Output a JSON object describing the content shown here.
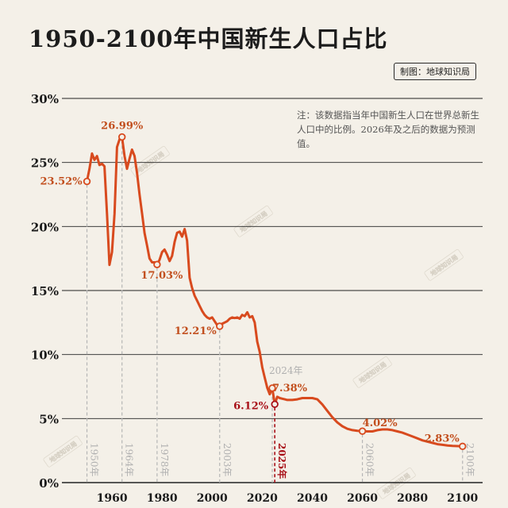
{
  "title": "1950-2100年中国新生人口占比",
  "credit": "制图：地球知识局",
  "note": "注：该数据指当年中国新生人口在世界总新生人口中的比例。2026年及之后的数据为预测值。",
  "watermark": "地球知识局",
  "colors": {
    "line": "#d84a1e",
    "label": "#c24f1e",
    "highlight": "#a81018",
    "grid": "#222222",
    "dashed": "#b5b5b5",
    "year_label": "#b0b0b0"
  },
  "chart_data": {
    "type": "line",
    "title": "1950-2100年中国新生人口占比",
    "xlabel": "",
    "ylabel": "",
    "xlim": [
      1940,
      2108
    ],
    "ylim": [
      0,
      30
    ],
    "y_ticks": [
      0,
      5,
      10,
      15,
      20,
      25,
      30
    ],
    "y_tick_labels": [
      "0%",
      "5%",
      "10%",
      "15%",
      "20%",
      "25%",
      "30%"
    ],
    "x_ticks": [
      1960,
      1980,
      2000,
      2020,
      2040,
      2060,
      2080,
      2100
    ],
    "x_tick_labels": [
      "1960",
      "1980",
      "2000",
      "2020",
      "2040",
      "2060",
      "2080",
      "2100"
    ],
    "grid": true,
    "series": [
      {
        "values": [
          [
            1950,
            23.52
          ],
          [
            1951,
            24.5
          ],
          [
            1952,
            25.7
          ],
          [
            1953,
            25.2
          ],
          [
            1954,
            25.5
          ],
          [
            1955,
            24.8
          ],
          [
            1956,
            24.9
          ],
          [
            1957,
            24.7
          ],
          [
            1958,
            21.0
          ],
          [
            1959,
            17.0
          ],
          [
            1960,
            18.0
          ],
          [
            1961,
            21.0
          ],
          [
            1962,
            26.2
          ],
          [
            1963,
            26.8
          ],
          [
            1964,
            26.99
          ],
          [
            1965,
            25.5
          ],
          [
            1966,
            24.5
          ],
          [
            1967,
            25.3
          ],
          [
            1968,
            26.0
          ],
          [
            1969,
            25.5
          ],
          [
            1970,
            24.2
          ],
          [
            1971,
            22.5
          ],
          [
            1972,
            21.0
          ],
          [
            1973,
            19.5
          ],
          [
            1974,
            18.5
          ],
          [
            1975,
            17.5
          ],
          [
            1976,
            17.2
          ],
          [
            1977,
            17.2
          ],
          [
            1978,
            17.03
          ],
          [
            1979,
            17.4
          ],
          [
            1980,
            18.0
          ],
          [
            1981,
            18.2
          ],
          [
            1982,
            17.8
          ],
          [
            1983,
            17.3
          ],
          [
            1984,
            17.7
          ],
          [
            1985,
            18.8
          ],
          [
            1986,
            19.5
          ],
          [
            1987,
            19.6
          ],
          [
            1988,
            19.2
          ],
          [
            1989,
            19.8
          ],
          [
            1990,
            18.9
          ],
          [
            1991,
            16.0
          ],
          [
            1992,
            15.2
          ],
          [
            1993,
            14.6
          ],
          [
            1994,
            14.2
          ],
          [
            1995,
            13.8
          ],
          [
            1996,
            13.4
          ],
          [
            1997,
            13.1
          ],
          [
            1998,
            12.9
          ],
          [
            1999,
            12.8
          ],
          [
            2000,
            12.9
          ],
          [
            2001,
            12.6
          ],
          [
            2002,
            12.3
          ],
          [
            2003,
            12.21
          ],
          [
            2004,
            12.4
          ],
          [
            2005,
            12.5
          ],
          [
            2006,
            12.6
          ],
          [
            2007,
            12.8
          ],
          [
            2008,
            12.9
          ],
          [
            2009,
            12.85
          ],
          [
            2010,
            12.9
          ],
          [
            2011,
            12.8
          ],
          [
            2012,
            13.1
          ],
          [
            2013,
            13.0
          ],
          [
            2014,
            13.3
          ],
          [
            2015,
            12.9
          ],
          [
            2016,
            13.0
          ],
          [
            2017,
            12.5
          ],
          [
            2018,
            11.0
          ],
          [
            2019,
            10.2
          ],
          [
            2020,
            9.0
          ],
          [
            2021,
            8.2
          ],
          [
            2022,
            7.4
          ],
          [
            2023,
            6.9
          ],
          [
            2024,
            7.38
          ],
          [
            2025,
            6.12
          ],
          [
            2026,
            6.7
          ],
          [
            2027,
            6.6
          ],
          [
            2028,
            6.55
          ],
          [
            2029,
            6.5
          ],
          [
            2030,
            6.45
          ],
          [
            2032,
            6.45
          ],
          [
            2034,
            6.5
          ],
          [
            2036,
            6.6
          ],
          [
            2038,
            6.6
          ],
          [
            2040,
            6.6
          ],
          [
            2042,
            6.5
          ],
          [
            2044,
            6.1
          ],
          [
            2046,
            5.6
          ],
          [
            2048,
            5.1
          ],
          [
            2050,
            4.7
          ],
          [
            2052,
            4.4
          ],
          [
            2054,
            4.2
          ],
          [
            2056,
            4.1
          ],
          [
            2058,
            4.05
          ],
          [
            2060,
            4.02
          ],
          [
            2062,
            4.0
          ],
          [
            2064,
            4.0
          ],
          [
            2066,
            4.1
          ],
          [
            2068,
            4.15
          ],
          [
            2070,
            4.15
          ],
          [
            2072,
            4.1
          ],
          [
            2074,
            4.0
          ],
          [
            2076,
            3.9
          ],
          [
            2078,
            3.75
          ],
          [
            2080,
            3.6
          ],
          [
            2082,
            3.45
          ],
          [
            2084,
            3.3
          ],
          [
            2086,
            3.2
          ],
          [
            2088,
            3.1
          ],
          [
            2090,
            3.0
          ],
          [
            2092,
            2.95
          ],
          [
            2094,
            2.9
          ],
          [
            2096,
            2.87
          ],
          [
            2098,
            2.85
          ],
          [
            2100,
            2.83
          ]
        ]
      }
    ],
    "annotations": [
      {
        "x": 1950,
        "y": 23.52,
        "label": "23.52%",
        "year_label": "1950年"
      },
      {
        "x": 1964,
        "y": 26.99,
        "label": "26.99%",
        "year_label": "1964年"
      },
      {
        "x": 1978,
        "y": 17.03,
        "label": "17.03%",
        "year_label": "1978年"
      },
      {
        "x": 2003,
        "y": 12.21,
        "label": "12.21%",
        "year_label": "2003年"
      },
      {
        "x": 2024,
        "y": 7.38,
        "label": "7.38%",
        "top_label": "2024年"
      },
      {
        "x": 2025,
        "y": 6.12,
        "label": "6.12%",
        "year_label": "2025年",
        "highlight": true
      },
      {
        "x": 2060,
        "y": 4.02,
        "label": "4.02%",
        "year_label": "2060年"
      },
      {
        "x": 2100,
        "y": 2.83,
        "label": "2.83%",
        "year_label": "2100年"
      }
    ]
  }
}
